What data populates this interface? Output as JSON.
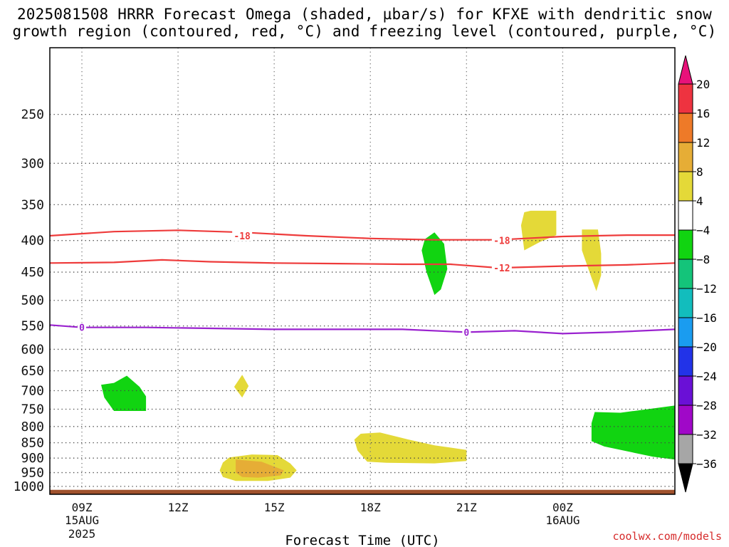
{
  "chart_data": {
    "type": "heatmap",
    "title_line1": "2025081508 HRRR Forecast Omega (shaded, µbar/s) for KFXE with dendritic snow",
    "title_line2": "growth region (contoured, red, °C) and freezing level (contoured, purple, °C)",
    "xlabel": "Forecast Time (UTC)",
    "credit": "coolwx.com/models",
    "y_axis": {
      "ticks": [
        250,
        300,
        350,
        400,
        450,
        500,
        550,
        600,
        650,
        700,
        750,
        800,
        850,
        900,
        950,
        1000
      ],
      "range": [
        195,
        1030
      ]
    },
    "x_axis": {
      "range_hours": [
        8,
        27.5
      ],
      "ticks": [
        {
          "hour": 9,
          "label": "09Z",
          "sub1": "15AUG",
          "sub2": "2025"
        },
        {
          "hour": 12,
          "label": "12Z",
          "sub1": "",
          "sub2": ""
        },
        {
          "hour": 15,
          "label": "15Z",
          "sub1": "",
          "sub2": ""
        },
        {
          "hour": 18,
          "label": "18Z",
          "sub1": "",
          "sub2": ""
        },
        {
          "hour": 21,
          "label": "21Z",
          "sub1": "",
          "sub2": ""
        },
        {
          "hour": 24,
          "label": "00Z",
          "sub1": "16AUG",
          "sub2": ""
        }
      ]
    },
    "colorbar": {
      "levels": [
        "20",
        "16",
        "12",
        "8",
        "4",
        "−4",
        "−8",
        "−12",
        "−16",
        "−20",
        "−24",
        "−28",
        "−32",
        "−36"
      ],
      "colors": [
        "#ee3340",
        "#ee7a28",
        "#e6ad36",
        "#e4d938",
        "#ffffff",
        "#11d411",
        "#14c47a",
        "#12bdbd",
        "#1a9cf0",
        "#2233e8",
        "#6a10d6",
        "#a008c8",
        "#a6a6a6"
      ],
      "top_arrow_color": "#e8127a",
      "bottom_arrow_color": "#000000"
    },
    "omega_regions": [
      {
        "value": -6,
        "color": "#11d411",
        "points": [
          [
            10.0,
            680
          ],
          [
            10.4,
            662
          ],
          [
            10.8,
            690
          ],
          [
            11.0,
            715
          ],
          [
            11.0,
            755
          ],
          [
            10.0,
            755
          ],
          [
            9.7,
            718
          ],
          [
            9.6,
            685
          ]
        ]
      },
      {
        "value": -6,
        "color": "#11d411",
        "points": [
          [
            20.0,
            388
          ],
          [
            20.3,
            405
          ],
          [
            20.4,
            445
          ],
          [
            20.2,
            480
          ],
          [
            20.0,
            490
          ],
          [
            19.75,
            450
          ],
          [
            19.6,
            415
          ],
          [
            19.7,
            398
          ]
        ]
      },
      {
        "value": -6,
        "color": "#11d411",
        "points": [
          [
            25.0,
            758
          ],
          [
            25.8,
            760
          ],
          [
            27.5,
            740
          ],
          [
            27.5,
            905
          ],
          [
            26.8,
            895
          ],
          [
            25.3,
            862
          ],
          [
            24.9,
            845
          ],
          [
            24.9,
            790
          ]
        ]
      },
      {
        "value": 6,
        "color": "#e4d938",
        "points": [
          [
            14.0,
            660
          ],
          [
            14.2,
            688
          ],
          [
            14.0,
            718
          ],
          [
            13.75,
            690
          ]
        ]
      },
      {
        "value": 6,
        "color": "#e4d938",
        "points": [
          [
            23.0,
            358
          ],
          [
            23.8,
            358
          ],
          [
            23.8,
            392
          ],
          [
            23.3,
            402
          ],
          [
            22.8,
            415
          ],
          [
            22.7,
            378
          ],
          [
            22.8,
            360
          ]
        ]
      },
      {
        "value": 6,
        "color": "#e4d938",
        "points": [
          [
            24.6,
            384
          ],
          [
            25.1,
            384
          ],
          [
            25.2,
            420
          ],
          [
            25.2,
            455
          ],
          [
            25.05,
            483
          ],
          [
            24.9,
            460
          ],
          [
            24.6,
            415
          ]
        ]
      },
      {
        "value": 6,
        "color": "#e4d938",
        "points": [
          [
            13.6,
            898
          ],
          [
            14.3,
            888
          ],
          [
            15.1,
            890
          ],
          [
            15.5,
            918
          ],
          [
            15.7,
            942
          ],
          [
            15.5,
            968
          ],
          [
            14.8,
            980
          ],
          [
            13.8,
            980
          ],
          [
            13.4,
            966
          ],
          [
            13.3,
            942
          ],
          [
            13.4,
            915
          ]
        ]
      },
      {
        "value": 6,
        "color": "#e4d938",
        "points": [
          [
            17.7,
            822
          ],
          [
            18.3,
            818
          ],
          [
            19.2,
            840
          ],
          [
            20.0,
            858
          ],
          [
            21.0,
            873
          ],
          [
            21.0,
            910
          ],
          [
            20.0,
            918
          ],
          [
            18.5,
            916
          ],
          [
            17.9,
            912
          ],
          [
            17.6,
            875
          ],
          [
            17.5,
            840
          ]
        ]
      },
      {
        "value": 10,
        "color": "#e6ad36",
        "points": [
          [
            13.8,
            905
          ],
          [
            14.6,
            912
          ],
          [
            15.3,
            942
          ],
          [
            15.2,
            960
          ],
          [
            14.5,
            968
          ],
          [
            14.0,
            966
          ],
          [
            13.8,
            950
          ],
          [
            13.8,
            925
          ]
        ]
      }
    ],
    "contours": [
      {
        "kind": "dendritic",
        "label": "-18",
        "color": "#ee3b3b",
        "label_at": [
          [
            14.0,
            393
          ],
          [
            22.1,
            400
          ]
        ],
        "points": [
          [
            8,
            393
          ],
          [
            10,
            387
          ],
          [
            12,
            385
          ],
          [
            14,
            388
          ],
          [
            16,
            393
          ],
          [
            18,
            397
          ],
          [
            20,
            399
          ],
          [
            22,
            399
          ],
          [
            24,
            394
          ],
          [
            26,
            392
          ],
          [
            27.5,
            392
          ]
        ]
      },
      {
        "kind": "dendritic",
        "label": "-12",
        "color": "#ee3b3b",
        "label_at": [
          [
            22.1,
            443
          ]
        ],
        "points": [
          [
            8,
            435
          ],
          [
            10,
            434
          ],
          [
            11.5,
            430
          ],
          [
            13,
            433
          ],
          [
            15,
            435
          ],
          [
            17,
            436
          ],
          [
            19,
            437
          ],
          [
            20.5,
            437
          ],
          [
            22,
            443
          ],
          [
            24,
            440
          ],
          [
            26,
            438
          ],
          [
            27.5,
            435
          ]
        ]
      },
      {
        "kind": "freezing",
        "label": "0",
        "color": "#9a22cf",
        "label_at": [
          [
            9,
            553
          ],
          [
            21,
            563
          ]
        ],
        "points": [
          [
            8,
            548
          ],
          [
            9,
            553
          ],
          [
            11,
            553
          ],
          [
            13,
            555
          ],
          [
            15,
            557
          ],
          [
            17,
            557
          ],
          [
            19,
            557
          ],
          [
            21,
            563
          ],
          [
            22.5,
            560
          ],
          [
            24,
            566
          ],
          [
            25.5,
            563
          ],
          [
            27.5,
            557
          ]
        ]
      }
    ],
    "terrain": {
      "color": "#a0522d",
      "from_hpa": 1013
    }
  }
}
